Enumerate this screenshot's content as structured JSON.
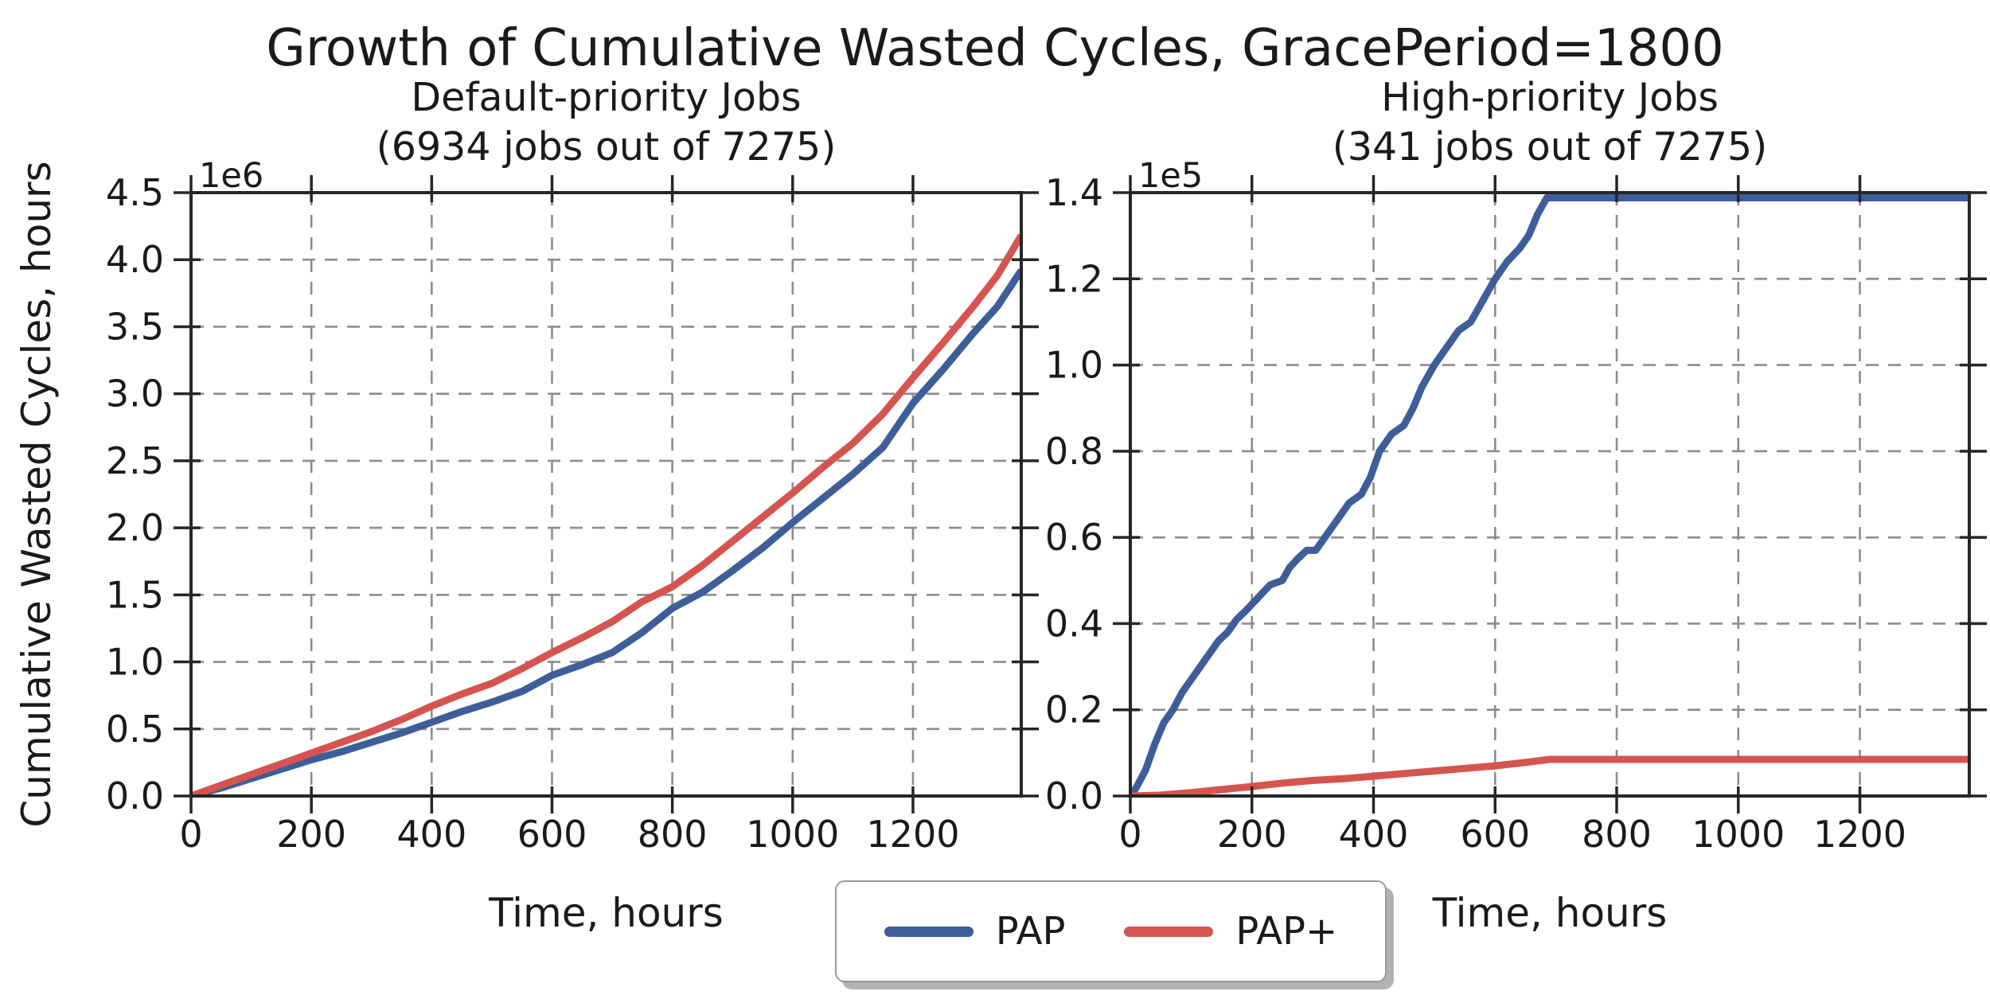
{
  "figure": {
    "title": "Growth of Cumulative Wasted Cycles, GracePeriod=1800",
    "ylabel": "Cumulative Wasted Cycles, hours",
    "text_color": "#1a1a1a",
    "grid_color": "#8c8c8c",
    "spine_color": "#262626",
    "background": "#ffffff"
  },
  "legend": {
    "entries": [
      {
        "label": "PAP",
        "color": "#3d5e99"
      },
      {
        "label": "PAP+",
        "color": "#d6544f"
      }
    ]
  },
  "chart_data": [
    {
      "type": "line",
      "title": "Default-priority Jobs",
      "subtitle": "(6934 jobs out of 7275)",
      "xlabel": "Time, hours",
      "offset_label": "1e6",
      "y_unit": "1e6 hours",
      "grid": true,
      "xlim": [
        0,
        1380
      ],
      "ylim": [
        0,
        4.5
      ],
      "xticks": {
        "values": [
          0,
          200,
          400,
          600,
          800,
          1000,
          1200
        ],
        "labels": [
          "0",
          "200",
          "400",
          "600",
          "800",
          "1000",
          "1200"
        ]
      },
      "yticks": {
        "values": [
          0,
          0.5,
          1,
          1.5,
          2,
          2.5,
          3,
          3.5,
          4,
          4.5
        ],
        "labels": [
          "0.0",
          "0.5",
          "1.0",
          "1.5",
          "2.0",
          "2.5",
          "3.0",
          "3.5",
          "4.0",
          "4.5"
        ]
      },
      "series": [
        {
          "name": "PAP",
          "color": "#3d5e99",
          "x": [
            0,
            50,
            100,
            150,
            200,
            250,
            300,
            350,
            400,
            450,
            500,
            550,
            600,
            650,
            700,
            750,
            800,
            850,
            900,
            950,
            1000,
            1050,
            1100,
            1150,
            1200,
            1250,
            1300,
            1340,
            1380
          ],
          "y": [
            0,
            0.06,
            0.13,
            0.2,
            0.27,
            0.33,
            0.4,
            0.47,
            0.55,
            0.63,
            0.7,
            0.78,
            0.9,
            0.98,
            1.07,
            1.22,
            1.4,
            1.52,
            1.68,
            1.85,
            2.04,
            2.22,
            2.4,
            2.6,
            2.93,
            3.18,
            3.45,
            3.65,
            3.92
          ]
        },
        {
          "name": "PAP+",
          "color": "#d6544f",
          "x": [
            0,
            50,
            100,
            150,
            200,
            250,
            300,
            350,
            400,
            450,
            500,
            550,
            600,
            650,
            700,
            750,
            800,
            850,
            900,
            950,
            1000,
            1050,
            1100,
            1150,
            1200,
            1250,
            1300,
            1340,
            1380
          ],
          "y": [
            0,
            0.08,
            0.16,
            0.24,
            0.32,
            0.4,
            0.48,
            0.57,
            0.67,
            0.76,
            0.84,
            0.95,
            1.07,
            1.18,
            1.3,
            1.45,
            1.56,
            1.72,
            1.9,
            2.08,
            2.26,
            2.45,
            2.63,
            2.85,
            3.12,
            3.38,
            3.65,
            3.88,
            4.18
          ]
        }
      ]
    },
    {
      "type": "line",
      "title": "High-priority Jobs",
      "subtitle": "(341 jobs out of 7275)",
      "xlabel": "Time, hours",
      "offset_label": "1e5",
      "y_unit": "1e5 hours",
      "grid": true,
      "xlim": [
        0,
        1380
      ],
      "ylim": [
        0,
        1.4
      ],
      "xticks": {
        "values": [
          0,
          200,
          400,
          600,
          800,
          1000,
          1200
        ],
        "labels": [
          "0",
          "200",
          "400",
          "600",
          "800",
          "1000",
          "1200"
        ]
      },
      "yticks": {
        "values": [
          0,
          0.2,
          0.4,
          0.6,
          0.8,
          1.0,
          1.2,
          1.4
        ],
        "labels": [
          "0.0",
          "0.2",
          "0.4",
          "0.6",
          "0.8",
          "1.0",
          "1.2",
          "1.4"
        ]
      },
      "series": [
        {
          "name": "PAP",
          "color": "#3d5e99",
          "x": [
            0,
            10,
            25,
            40,
            55,
            70,
            85,
            100,
            115,
            130,
            145,
            160,
            175,
            190,
            210,
            230,
            250,
            262,
            275,
            290,
            305,
            320,
            340,
            360,
            380,
            395,
            410,
            430,
            450,
            465,
            480,
            500,
            520,
            540,
            560,
            580,
            600,
            620,
            640,
            655,
            670,
            685,
            700,
            1380
          ],
          "y": [
            0,
            0.02,
            0.06,
            0.12,
            0.17,
            0.2,
            0.24,
            0.27,
            0.3,
            0.33,
            0.36,
            0.38,
            0.41,
            0.43,
            0.46,
            0.49,
            0.5,
            0.53,
            0.55,
            0.57,
            0.57,
            0.6,
            0.64,
            0.68,
            0.7,
            0.74,
            0.8,
            0.84,
            0.86,
            0.9,
            0.95,
            1.0,
            1.04,
            1.08,
            1.1,
            1.15,
            1.2,
            1.24,
            1.27,
            1.3,
            1.35,
            1.388,
            1.388,
            1.388
          ]
        },
        {
          "name": "PAP+",
          "color": "#d6544f",
          "x": [
            0,
            50,
            100,
            150,
            200,
            250,
            300,
            350,
            400,
            450,
            500,
            550,
            600,
            650,
            690,
            1380
          ],
          "y": [
            0,
            0.002,
            0.008,
            0.015,
            0.022,
            0.03,
            0.036,
            0.04,
            0.046,
            0.052,
            0.058,
            0.064,
            0.07,
            0.078,
            0.085,
            0.085
          ]
        }
      ]
    }
  ]
}
